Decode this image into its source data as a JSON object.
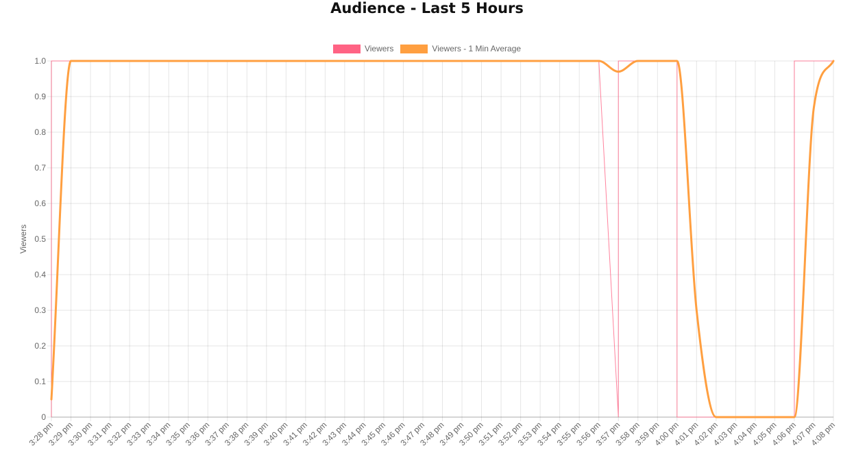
{
  "chart_data": {
    "type": "line",
    "title": "Audience - Last 5 Hours",
    "ylabel": "Viewers",
    "xlabel": "",
    "ylim": [
      0,
      1
    ],
    "yticks": [
      "0",
      "0.1",
      "0.2",
      "0.3",
      "0.4",
      "0.5",
      "0.6",
      "0.7",
      "0.8",
      "0.9",
      "1.0"
    ],
    "grid": true,
    "legend_position": "top-center",
    "categories": [
      "3:28 pm",
      "3:29 pm",
      "3:30 pm",
      "3:31 pm",
      "3:32 pm",
      "3:33 pm",
      "3:34 pm",
      "3:35 pm",
      "3:36 pm",
      "3:37 pm",
      "3:38 pm",
      "3:39 pm",
      "3:40 pm",
      "3:41 pm",
      "3:42 pm",
      "3:43 pm",
      "3:44 pm",
      "3:45 pm",
      "3:46 pm",
      "3:47 pm",
      "3:48 pm",
      "3:49 pm",
      "3:50 pm",
      "3:51 pm",
      "3:52 pm",
      "3:53 pm",
      "3:54 pm",
      "3:55 pm",
      "3:56 pm",
      "3:57 pm",
      "3:58 pm",
      "3:59 pm",
      "4:00 pm",
      "4:01 pm",
      "4:02 pm",
      "4:03 pm",
      "4:04 pm",
      "4:05 pm",
      "4:06 pm",
      "4:07 pm",
      "4:08 pm"
    ],
    "series": [
      {
        "name": "Viewers",
        "color": "#ff6384",
        "points": [
          {
            "x": "3:28 pm",
            "y": 0
          },
          {
            "x": "3:28 pm",
            "y": 1
          },
          {
            "x": "3:56 pm",
            "y": 1
          },
          {
            "x": "3:57 pm",
            "y": 0
          },
          {
            "x": "3:57 pm",
            "y": 1
          },
          {
            "x": "4:00 pm",
            "y": 1
          },
          {
            "x": "4:00 pm",
            "y": 0
          },
          {
            "x": "4:06 pm",
            "y": 0
          },
          {
            "x": "4:06 pm",
            "y": 1
          },
          {
            "x": "4:08 pm",
            "y": 1
          }
        ]
      },
      {
        "name": "Viewers - 1 Min Average",
        "color": "#ff9f40",
        "points": [
          {
            "x": "3:28 pm",
            "y": 0.05
          },
          {
            "x": "3:29 pm",
            "y": 1.0
          },
          {
            "x": "3:56 pm",
            "y": 1.0
          },
          {
            "x": "3:57 pm",
            "y": 0.97
          },
          {
            "x": "3:58 pm",
            "y": 1.0
          },
          {
            "x": "4:00 pm",
            "y": 1.0
          },
          {
            "x": "4:01 pm",
            "y": 0.3
          },
          {
            "x": "4:02 pm",
            "y": 0.0
          },
          {
            "x": "4:06 pm",
            "y": 0.0
          },
          {
            "x": "4:07 pm",
            "y": 0.87
          },
          {
            "x": "4:08 pm",
            "y": 1.0
          }
        ]
      }
    ]
  }
}
